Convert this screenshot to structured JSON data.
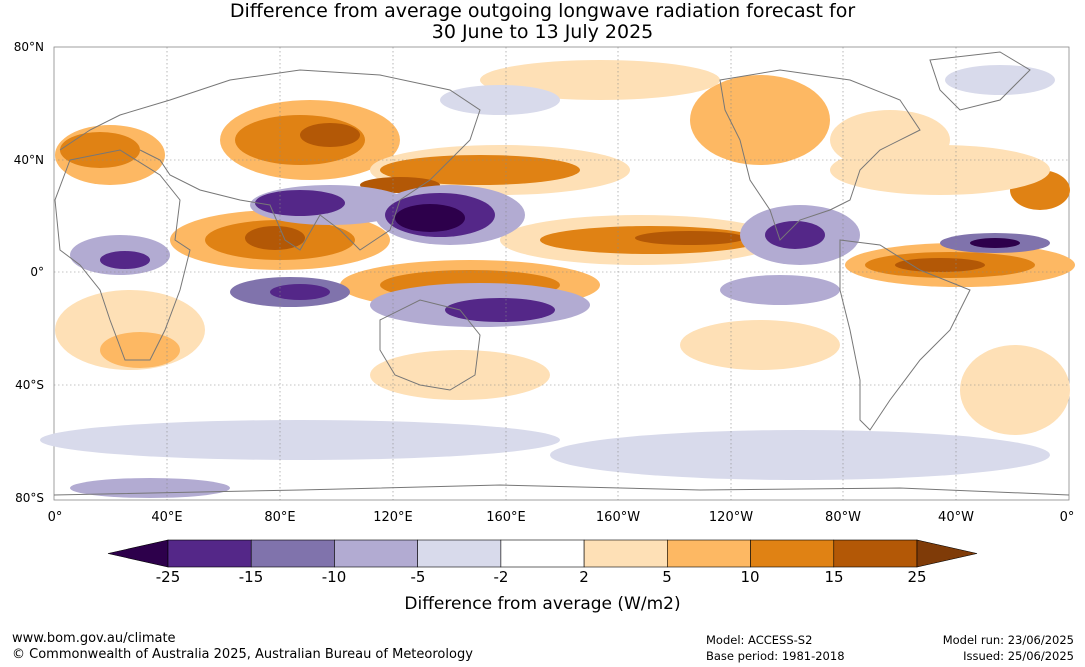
{
  "title_line1": "Difference from average outgoing longwave radiation forecast for",
  "title_line2": "30 June to 13 July 2025",
  "lat_labels": [
    "80°N",
    "40°N",
    "0°",
    "40°S",
    "80°S"
  ],
  "lon_labels": [
    "0°",
    "40°E",
    "80°E",
    "120°E",
    "160°E",
    "160°W",
    "120°W",
    "80°W",
    "40°W",
    "0°"
  ],
  "colorbar": {
    "ticks": [
      "-25",
      "-15",
      "-10",
      "-5",
      "-2",
      "2",
      "5",
      "10",
      "15",
      "25"
    ],
    "colors": [
      "#2d004b",
      "#542788",
      "#8073ac",
      "#b2abd2",
      "#d8daeb",
      "#ffffff",
      "#fee0b6",
      "#fdb863",
      "#e08214",
      "#b35806",
      "#7f3b08"
    ],
    "label": "Difference from average (W/m2)"
  },
  "footer": {
    "url": "www.bom.gov.au/climate",
    "copyright": "© Commonwealth of Australia 2025, Australian Bureau of Meteorology",
    "model": "Model: ACCESS-S2",
    "base_period": "Base period: 1981-2018",
    "model_run": "Model run: 23/06/2025",
    "issued": "Issued: 25/06/2025"
  }
}
